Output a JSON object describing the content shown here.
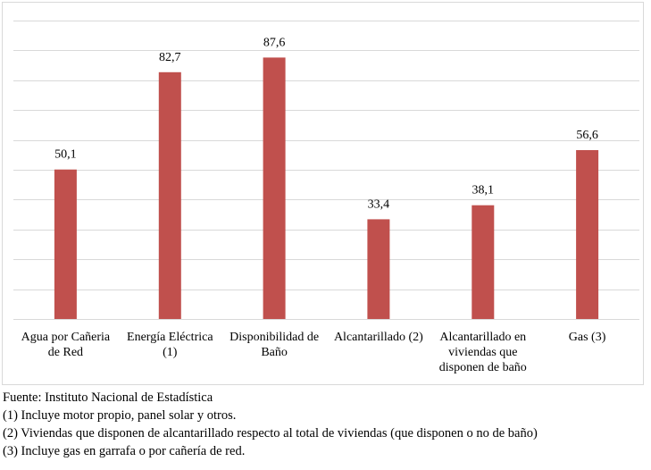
{
  "chart_data": {
    "type": "bar",
    "categories": [
      [
        "Agua por Cañeria",
        "de Red"
      ],
      [
        "Energía Eléctrica",
        "(1)"
      ],
      [
        "Disponibilidad de",
        "Baño"
      ],
      [
        "Alcantarillado (2)"
      ],
      [
        "Alcantarillado en",
        "viviendas que",
        "disponen de baño"
      ],
      [
        "Gas (3)"
      ]
    ],
    "values": [
      50.1,
      82.7,
      87.6,
      33.4,
      38.1,
      56.6
    ],
    "value_labels": [
      "50,1",
      "82,7",
      "87,6",
      "33,4",
      "38,1",
      "56,6"
    ],
    "ylim": [
      0,
      100
    ],
    "gridlines": 10,
    "grid": true,
    "legend": "none",
    "bar_color": "#c0504d",
    "grid_color": "#d9d9d9"
  },
  "notes": {
    "source": "Fuente: Instituto Nacional de Estadística",
    "note1": "(1) Incluye motor propio, panel solar y otros.",
    "note2": "(2) Viviendas que disponen de alcantarillado respecto al total de viviendas (que disponen o no de baño)",
    "note3": "(3) Incluye gas en garrafa o por cañería de red."
  }
}
